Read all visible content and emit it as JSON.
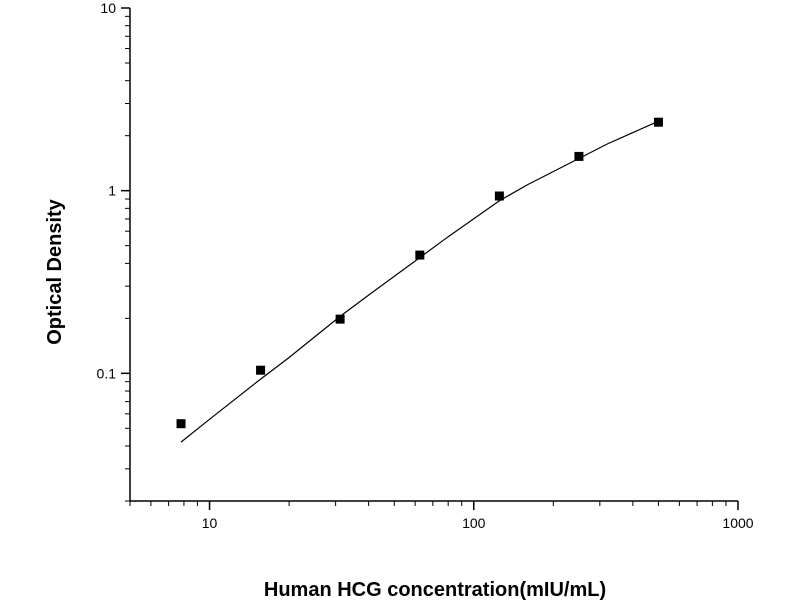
{
  "chart_data": {
    "type": "scatter",
    "title": "",
    "xlabel": "Human HCG concentration(mIU/mL)",
    "ylabel": "Optical Density",
    "x_scale": "log",
    "y_scale": "log",
    "xlim": [
      5,
      1000
    ],
    "ylim": [
      0.02,
      10
    ],
    "x_ticks": [
      {
        "value": 10,
        "label": "10"
      },
      {
        "value": 100,
        "label": "100"
      },
      {
        "value": 1000,
        "label": "1000"
      }
    ],
    "y_ticks": [
      {
        "value": 0.1,
        "label": "0.1"
      },
      {
        "value": 1,
        "label": "1"
      },
      {
        "value": 10,
        "label": "10"
      }
    ],
    "grid": false,
    "legend": "none",
    "colors": {
      "points": "#000000",
      "curve": "#000000",
      "axes": "#000000"
    },
    "series": [
      {
        "type": "scatter",
        "marker": "square",
        "x": [
          7.8,
          15.6,
          31.2,
          62.5,
          125,
          250,
          500
        ],
        "y": [
          0.053,
          0.104,
          0.198,
          0.444,
          0.935,
          1.54,
          2.37
        ]
      },
      {
        "type": "line",
        "x": [
          7.8,
          10,
          15.6,
          20,
          31.2,
          40,
          62.5,
          80,
          125,
          160,
          250,
          320,
          500
        ],
        "y": [
          0.042,
          0.056,
          0.093,
          0.122,
          0.205,
          0.268,
          0.43,
          0.56,
          0.88,
          1.08,
          1.5,
          1.8,
          2.4
        ]
      }
    ]
  }
}
